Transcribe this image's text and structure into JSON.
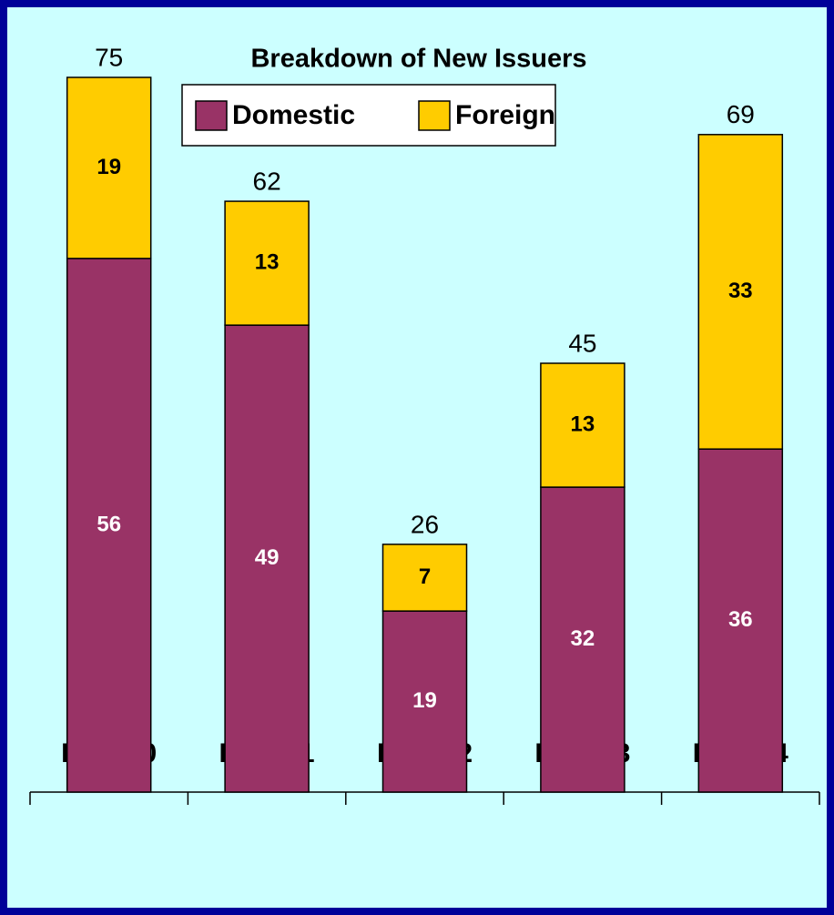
{
  "chart_data": {
    "type": "stacked_bar",
    "title": "Breakdown of New Issuers",
    "categories": [
      "FY2000",
      "FY2001",
      "FY2002",
      "FY2003",
      "FY2004"
    ],
    "series": [
      {
        "name": "Domestic",
        "color": "#993366",
        "values": [
          56,
          49,
          19,
          32,
          36
        ]
      },
      {
        "name": "Foreign",
        "color": "#ffcc00",
        "values": [
          19,
          13,
          7,
          13,
          33
        ]
      }
    ],
    "totals": [
      75,
      62,
      26,
      45,
      69
    ]
  }
}
